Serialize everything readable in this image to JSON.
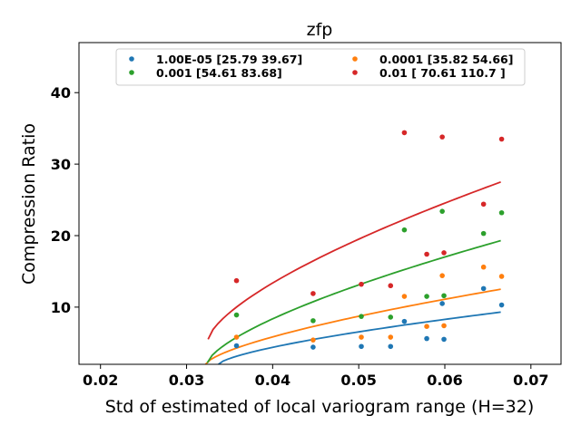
{
  "chart_data": {
    "type": "scatter",
    "title": "zfp",
    "xlabel": "Std of estimated of local variogram range (H=32)",
    "ylabel": "Compression Ratio",
    "xlim": [
      0.0175,
      0.0735
    ],
    "ylim": [
      2,
      47
    ],
    "xticks": [
      0.02,
      0.03,
      0.04,
      0.05,
      0.06,
      0.07
    ],
    "xtick_labels": [
      "0.02",
      "0.03",
      "0.04",
      "0.05",
      "0.06",
      "0.07"
    ],
    "yticks": [
      10,
      20,
      30,
      40
    ],
    "ytick_labels": [
      "10",
      "20",
      "30",
      "40"
    ],
    "legend_position": "top-center",
    "series": [
      {
        "name": "1.00E-05 [25.79 39.67]",
        "color": "#1f77b4",
        "x": [
          0.0358,
          0.0447,
          0.0503,
          0.0537,
          0.0553,
          0.0579,
          0.0597,
          0.0599,
          0.0645,
          0.0666
        ],
        "y": [
          4.6,
          4.4,
          4.5,
          4.5,
          8.0,
          5.6,
          10.5,
          5.5,
          12.6,
          10.3
        ],
        "fit": {
          "x": [
            0.0337,
            0.0665
          ],
          "y0": 2.0,
          "y1": 9.3
        }
      },
      {
        "name": "0.0001 [35.82 54.66]",
        "color": "#ff7f0e",
        "x": [
          0.0358,
          0.0447,
          0.0503,
          0.0537,
          0.0553,
          0.0579,
          0.0597,
          0.0599,
          0.0645,
          0.0666
        ],
        "y": [
          5.8,
          5.4,
          5.8,
          5.8,
          11.5,
          7.3,
          14.4,
          7.4,
          15.6,
          14.3
        ],
        "fit": {
          "x": [
            0.0322,
            0.0665
          ],
          "y0": 2.0,
          "y1": 12.5
        }
      },
      {
        "name": "0.001 [54.61 83.68]",
        "color": "#2ca02c",
        "x": [
          0.0358,
          0.0447,
          0.0503,
          0.0537,
          0.0553,
          0.0579,
          0.0597,
          0.0599,
          0.0645,
          0.0666
        ],
        "y": [
          8.9,
          8.1,
          8.7,
          8.6,
          20.8,
          11.5,
          23.4,
          11.6,
          20.3,
          23.2
        ],
        "fit": {
          "x": [
            0.0324,
            0.0665
          ],
          "y0": 2.2,
          "y1": 19.3
        }
      },
      {
        "name": "0.01 [ 70.61 110.7 ]",
        "color": "#d62728",
        "x": [
          0.0358,
          0.0447,
          0.0503,
          0.0537,
          0.0553,
          0.0579,
          0.0597,
          0.0599,
          0.0645,
          0.0666
        ],
        "y": [
          13.7,
          11.9,
          13.2,
          13.0,
          34.4,
          17.4,
          33.8,
          17.6,
          24.4,
          33.5
        ],
        "fit": {
          "x": [
            0.0325,
            0.0665
          ],
          "y0": 5.5,
          "y1": 27.5
        }
      }
    ]
  }
}
